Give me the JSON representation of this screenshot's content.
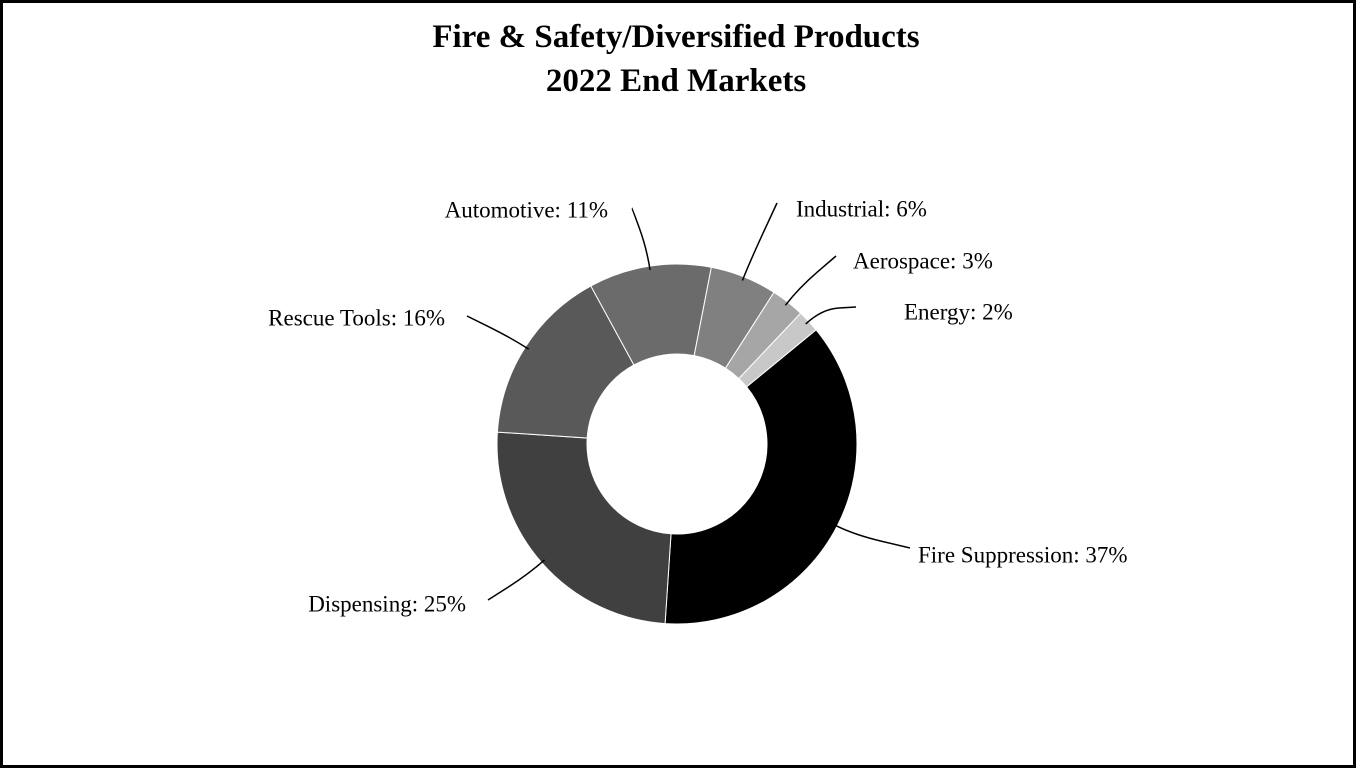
{
  "chart_data": {
    "type": "donut",
    "title": "Fire & Safety/Diversified Products",
    "subtitle": "2022 End Markets",
    "values": [
      37,
      25,
      16,
      11,
      6,
      3,
      2
    ],
    "value_labels": [
      "Fire Suppression: 37%",
      "Dispensing: 25%",
      "Rescue Tools: 16%",
      "Automotive: 11%",
      "Industrial: 6%",
      "Aerospace: 3%",
      "Energy: 2%"
    ],
    "colors": [
      "#000000",
      "#404040",
      "#595959",
      "#6b6b6b",
      "#808080",
      "#a6a6a6",
      "#c8c8c8"
    ]
  }
}
